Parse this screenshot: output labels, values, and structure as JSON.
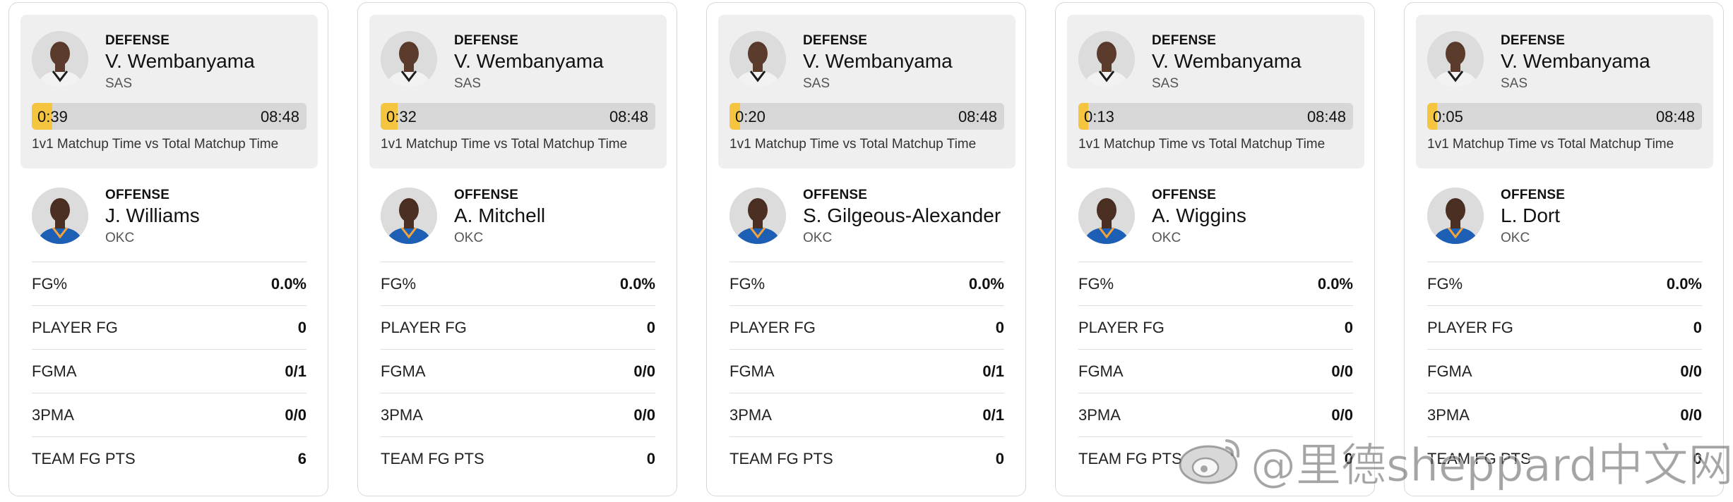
{
  "caption_text": "1v1 Matchup Time vs Total Matchup Time",
  "colors": {
    "bar_fill": "#f6c53f",
    "bar_track": "#d7d7d7",
    "panel_bg": "#efefef"
  },
  "cards": [
    {
      "defense": {
        "role": "DEFENSE",
        "name": "V. Wembanyama",
        "team": "SAS",
        "avatar_icon": "player-headshot-icon"
      },
      "matchup": {
        "time": "0:39",
        "total": "08:48",
        "fraction": 0.074
      },
      "offense": {
        "role": "OFFENSE",
        "name": "J. Williams",
        "team": "OKC",
        "avatar_icon": "player-headshot-icon"
      },
      "stats": [
        {
          "label": "FG%",
          "value": "0.0%"
        },
        {
          "label": "PLAYER FG",
          "value": "0"
        },
        {
          "label": "FGMA",
          "value": "0/1"
        },
        {
          "label": "3PMA",
          "value": "0/0"
        },
        {
          "label": "TEAM FG PTS",
          "value": "6"
        }
      ]
    },
    {
      "defense": {
        "role": "DEFENSE",
        "name": "V. Wembanyama",
        "team": "SAS",
        "avatar_icon": "player-headshot-icon"
      },
      "matchup": {
        "time": "0:32",
        "total": "08:48",
        "fraction": 0.061
      },
      "offense": {
        "role": "OFFENSE",
        "name": "A. Mitchell",
        "team": "OKC",
        "avatar_icon": "player-headshot-icon"
      },
      "stats": [
        {
          "label": "FG%",
          "value": "0.0%"
        },
        {
          "label": "PLAYER FG",
          "value": "0"
        },
        {
          "label": "FGMA",
          "value": "0/0"
        },
        {
          "label": "3PMA",
          "value": "0/0"
        },
        {
          "label": "TEAM FG PTS",
          "value": "0"
        }
      ]
    },
    {
      "defense": {
        "role": "DEFENSE",
        "name": "V. Wembanyama",
        "team": "SAS",
        "avatar_icon": "player-headshot-icon"
      },
      "matchup": {
        "time": "0:20",
        "total": "08:48",
        "fraction": 0.038
      },
      "offense": {
        "role": "OFFENSE",
        "name": "S. Gilgeous-Alexander",
        "team": "OKC",
        "avatar_icon": "player-headshot-icon"
      },
      "stats": [
        {
          "label": "FG%",
          "value": "0.0%"
        },
        {
          "label": "PLAYER FG",
          "value": "0"
        },
        {
          "label": "FGMA",
          "value": "0/1"
        },
        {
          "label": "3PMA",
          "value": "0/1"
        },
        {
          "label": "TEAM FG PTS",
          "value": "0"
        }
      ]
    },
    {
      "defense": {
        "role": "DEFENSE",
        "name": "V. Wembanyama",
        "team": "SAS",
        "avatar_icon": "player-headshot-icon"
      },
      "matchup": {
        "time": "0:13",
        "total": "08:48",
        "fraction": 0.025
      },
      "offense": {
        "role": "OFFENSE",
        "name": "A. Wiggins",
        "team": "OKC",
        "avatar_icon": "player-headshot-icon"
      },
      "stats": [
        {
          "label": "FG%",
          "value": "0.0%"
        },
        {
          "label": "PLAYER FG",
          "value": "0"
        },
        {
          "label": "FGMA",
          "value": "0/0"
        },
        {
          "label": "3PMA",
          "value": "0/0"
        },
        {
          "label": "TEAM FG PTS",
          "value": "0"
        }
      ]
    },
    {
      "defense": {
        "role": "DEFENSE",
        "name": "V. Wembanyama",
        "team": "SAS",
        "avatar_icon": "player-headshot-icon"
      },
      "matchup": {
        "time": "0:05",
        "total": "08:48",
        "fraction": 0.01
      },
      "offense": {
        "role": "OFFENSE",
        "name": "L. Dort",
        "team": "OKC",
        "avatar_icon": "player-headshot-icon"
      },
      "stats": [
        {
          "label": "FG%",
          "value": "0.0%"
        },
        {
          "label": "PLAYER FG",
          "value": "0"
        },
        {
          "label": "FGMA",
          "value": "0/0"
        },
        {
          "label": "3PMA",
          "value": "0/0"
        },
        {
          "label": "TEAM FG PTS",
          "value": "0"
        }
      ]
    }
  ],
  "watermark": {
    "text": "@里德sheppard中文网",
    "icon": "weibo-logo-icon"
  }
}
